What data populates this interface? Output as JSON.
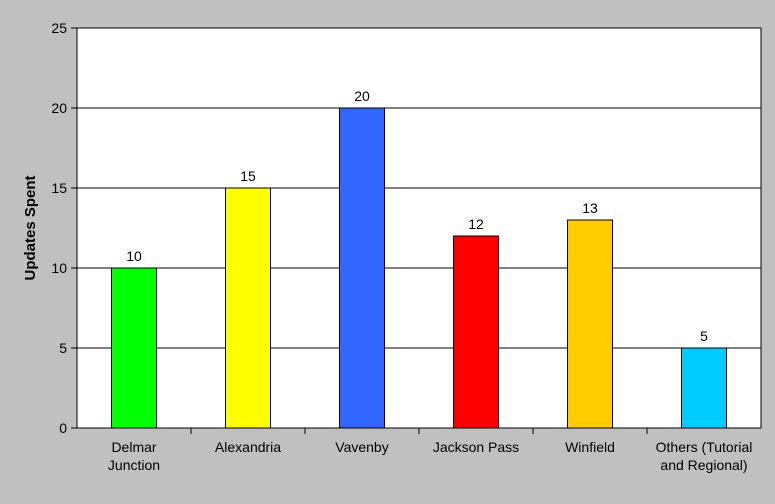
{
  "chart_data": {
    "type": "bar",
    "categories": [
      [
        "Delmar",
        "Junction"
      ],
      [
        "Alexandria"
      ],
      [
        "Vavenby"
      ],
      [
        "Jackson Pass"
      ],
      [
        "Winfield"
      ],
      [
        "Others (Tutorial",
        "and Regional)"
      ]
    ],
    "values": [
      10,
      15,
      20,
      12,
      13,
      5
    ],
    "bar_colors": [
      "#00ff00",
      "#ffff00",
      "#3366ff",
      "#ff0000",
      "#ffcc00",
      "#00ccff"
    ],
    "ylabel": "Updates Spent",
    "xlabel": "",
    "ylim": [
      0,
      25
    ],
    "yticks": [
      0,
      5,
      10,
      15,
      20,
      25
    ],
    "grid": true,
    "plot_background": "#ffffff",
    "page_background": "#c0c0c0",
    "data_labels": true
  }
}
